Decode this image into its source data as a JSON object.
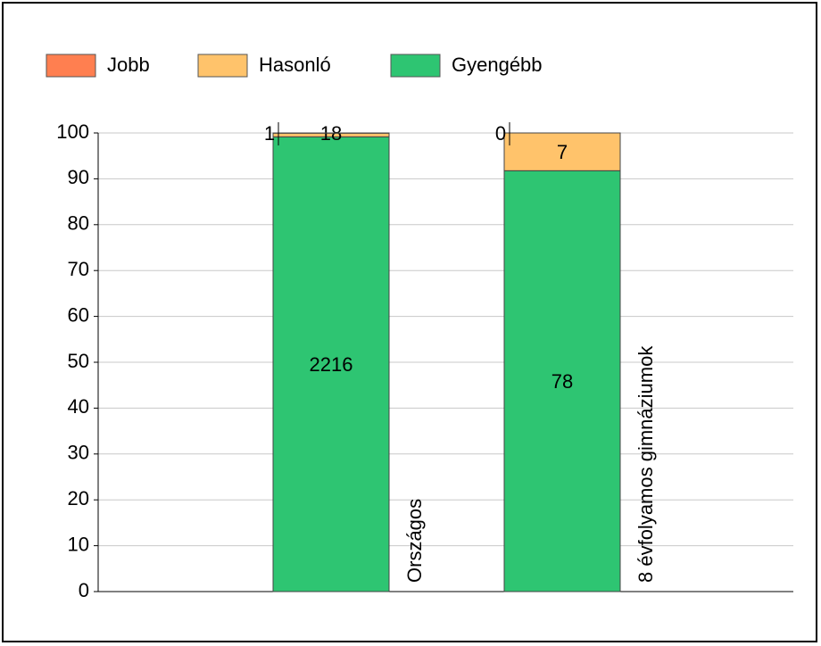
{
  "chart_data": {
    "type": "bar",
    "stacking": "percent",
    "categories": [
      "Országos",
      "8 évfolyamos gimnáziumok"
    ],
    "series": [
      {
        "name": "Jobb",
        "color": "#ff7f50",
        "values": [
          1,
          0
        ]
      },
      {
        "name": "Hasonló",
        "color": "#ffc36b",
        "values": [
          18,
          7
        ]
      },
      {
        "name": "Gyengébb",
        "color": "#2ec572",
        "values": [
          2216,
          78
        ]
      }
    ],
    "ylim": [
      0,
      100
    ],
    "yticks": [
      0,
      10,
      20,
      30,
      40,
      50,
      60,
      70,
      80,
      90,
      100
    ],
    "grid": true,
    "legend": "top"
  }
}
